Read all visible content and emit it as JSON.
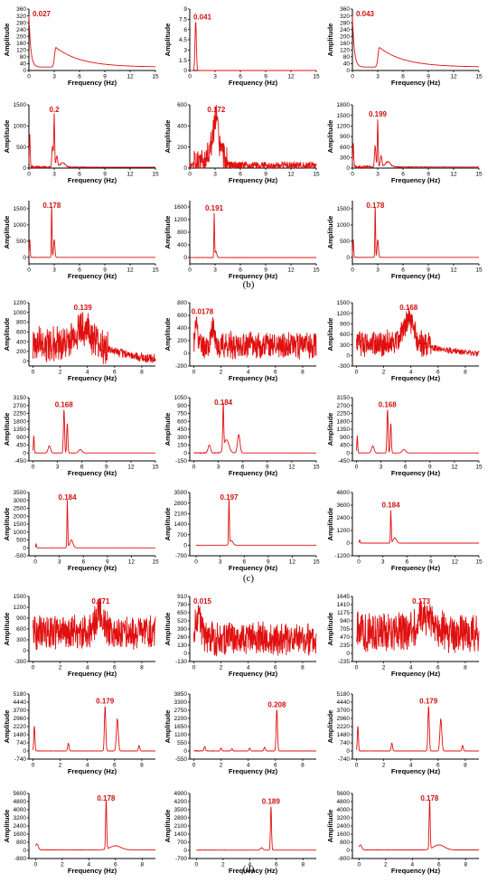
{
  "panel_labels": [
    "(b)",
    "(c)",
    "(d)"
  ],
  "chart_data": [
    {
      "type": "line",
      "xlabel": "Frequency (Hz)",
      "ylabel": "Amplitude",
      "xlim": [
        0,
        15
      ],
      "xticks": [
        0,
        3,
        6,
        9,
        12,
        15
      ],
      "yticks": [
        0,
        40,
        80,
        120,
        160,
        200,
        240,
        280,
        320,
        360
      ],
      "ylim": [
        0,
        360
      ],
      "annotation": "0.027",
      "peaks": [],
      "baseline": 0,
      "noise": 0,
      "decay": {
        "amp": 300,
        "rate": 4.5,
        "bump": [
          3.2,
          115,
          0.9
        ]
      },
      "seed": 1
    },
    {
      "type": "line",
      "xlabel": "Frequency (Hz)",
      "ylabel": "Amplitude",
      "xlim": [
        0,
        15
      ],
      "xticks": [
        0,
        3,
        6,
        9,
        12,
        15
      ],
      "yticks": [
        0,
        1.5,
        3,
        4.5,
        6,
        7.5,
        9
      ],
      "ylim": [
        0,
        9
      ],
      "annotation": "0.041",
      "peaks": [
        [
          0.7,
          7.2,
          0.08
        ]
      ],
      "baseline": 0,
      "noise": 0,
      "seed": 2
    },
    {
      "type": "line",
      "xlabel": "Frequency (Hz)",
      "ylabel": "Amplitude",
      "xlim": [
        0,
        15
      ],
      "xticks": [
        0,
        3,
        6,
        9,
        12,
        15
      ],
      "yticks": [
        0,
        40,
        80,
        120,
        160,
        200,
        240,
        280,
        320,
        360
      ],
      "ylim": [
        0,
        360
      ],
      "annotation": "0.043",
      "peaks": [],
      "baseline": 0,
      "noise": 0,
      "decay": {
        "amp": 300,
        "rate": 4.5,
        "bump": [
          3.2,
          115,
          0.9
        ]
      },
      "seed": 3
    },
    {
      "type": "line",
      "xlabel": "Frequency (Hz)",
      "ylabel": "Amplitude",
      "xlim": [
        0,
        15
      ],
      "xticks": [
        0,
        3,
        6,
        9,
        12,
        15
      ],
      "yticks": [
        0,
        500,
        1000,
        1500
      ],
      "ylim": [
        0,
        1500
      ],
      "annotation": "0.2",
      "peaks": [
        [
          0.1,
          800,
          0.05
        ],
        [
          2.8,
          500,
          0.08
        ],
        [
          3.0,
          1250,
          0.05
        ],
        [
          3.3,
          250,
          0.1
        ],
        [
          4.0,
          100,
          0.3
        ]
      ],
      "baseline": 20,
      "noise": 60,
      "seed": 4
    },
    {
      "type": "line",
      "xlabel": "Frequency (Hz)",
      "ylabel": "Amplitude",
      "xlim": [
        0,
        15
      ],
      "xticks": [
        0,
        3,
        6,
        9,
        12,
        15
      ],
      "yticks": [
        0,
        200,
        400,
        600
      ],
      "ylim": [
        0,
        600
      ],
      "annotation": "0.172",
      "peaks": [
        [
          3.0,
          250,
          0.6
        ],
        [
          3.1,
          200,
          0.2
        ]
      ],
      "baseline": 20,
      "noise": 140,
      "noiseRange": [
        0.5,
        4.5
      ],
      "seed": 5
    },
    {
      "type": "line",
      "xlabel": "Frequency (Hz)",
      "ylabel": "Amplitude",
      "xlim": [
        0,
        15
      ],
      "xticks": [
        0,
        3,
        6,
        9,
        12,
        15
      ],
      "yticks": [
        0,
        300,
        600,
        900,
        1200,
        1500,
        1800
      ],
      "ylim": [
        0,
        1800
      ],
      "annotation": "0.199",
      "peaks": [
        [
          0.1,
          700,
          0.05
        ],
        [
          2.7,
          600,
          0.08
        ],
        [
          3.0,
          1350,
          0.05
        ],
        [
          3.4,
          300,
          0.1
        ],
        [
          4.2,
          150,
          0.3
        ]
      ],
      "baseline": 30,
      "noise": 80,
      "seed": 6
    },
    {
      "type": "line",
      "xlabel": "Frequency (Hz)",
      "ylabel": "Amplitude",
      "xlim": [
        0,
        15
      ],
      "xticks": [
        0,
        3,
        6,
        9,
        12,
        15
      ],
      "yticks": [
        0,
        500,
        1000,
        1500
      ],
      "ylim": [
        -200,
        1750
      ],
      "annotation": "0.178",
      "peaks": [
        [
          0.1,
          550,
          0.05
        ],
        [
          2.7,
          1650,
          0.04
        ],
        [
          3.0,
          550,
          0.08
        ]
      ],
      "baseline": 0,
      "noise": 10,
      "seed": 7
    },
    {
      "type": "line",
      "xlabel": "Frequency (Hz)",
      "ylabel": "Amplitude",
      "xlim": [
        0,
        15
      ],
      "xticks": [
        0,
        3,
        6,
        9,
        12,
        15
      ],
      "yticks": [
        0,
        400,
        800,
        1200,
        1600
      ],
      "ylim": [
        -200,
        1800
      ],
      "annotation": "0.191",
      "peaks": [
        [
          2.9,
          1400,
          0.04
        ],
        [
          3.1,
          200,
          0.1
        ]
      ],
      "baseline": 0,
      "noise": 10,
      "seed": 8
    },
    {
      "type": "line",
      "xlabel": "Frequency (Hz)",
      "ylabel": "Amplitude",
      "xlim": [
        0,
        15
      ],
      "xticks": [
        0,
        3,
        6,
        9,
        12,
        15
      ],
      "yticks": [
        0,
        500,
        1000,
        1500
      ],
      "ylim": [
        -200,
        1750
      ],
      "annotation": "0.178",
      "peaks": [
        [
          0.1,
          550,
          0.05
        ],
        [
          2.7,
          1650,
          0.04
        ],
        [
          3.0,
          550,
          0.08
        ]
      ],
      "baseline": 0,
      "noise": 10,
      "seed": 9
    },
    {
      "type": "line",
      "xlabel": "Frequency (Hz)",
      "ylabel": "Amplitude",
      "xlim": [
        -0.3,
        9
      ],
      "xticks": [
        0,
        2,
        4,
        6,
        8
      ],
      "yticks": [
        0,
        200,
        400,
        600,
        800,
        1000,
        1200
      ],
      "ylim": [
        -100,
        1200
      ],
      "annotation": "0.139",
      "peaks": [
        [
          3.7,
          350,
          0.5
        ]
      ],
      "baseline": 300,
      "noise": 350,
      "noiseRange": [
        0,
        5.5
      ],
      "tailDecay": true,
      "seed": 10
    },
    {
      "type": "line",
      "xlabel": "Frequency (Hz)",
      "ylabel": "Amplitude",
      "xlim": [
        -0.3,
        9
      ],
      "xticks": [
        0,
        2,
        4,
        6,
        8
      ],
      "yticks": [
        -200,
        0,
        200,
        400,
        600,
        800
      ],
      "ylim": [
        -200,
        800
      ],
      "annotation": "0.0178",
      "peaks": [
        [
          0.2,
          350,
          0.1
        ],
        [
          1.4,
          300,
          0.1
        ]
      ],
      "baseline": 100,
      "noise": 200,
      "noiseRange": [
        0,
        9
      ],
      "seed": 11
    },
    {
      "type": "line",
      "xlabel": "Frequency (Hz)",
      "ylabel": "Amplitude",
      "xlim": [
        -0.3,
        9
      ],
      "xticks": [
        0,
        2,
        4,
        6,
        8
      ],
      "yticks": [
        -300,
        0,
        300,
        600,
        900,
        1200,
        1500
      ],
      "ylim": [
        -300,
        1500
      ],
      "annotation": "0.168",
      "peaks": [
        [
          3.8,
          650,
          0.4
        ]
      ],
      "baseline": 300,
      "noise": 350,
      "noiseRange": [
        0,
        5.5
      ],
      "tailDecay": true,
      "seed": 12
    },
    {
      "type": "line",
      "xlabel": "Frequency (Hz)",
      "ylabel": "Amplitude",
      "xlim": [
        -0.5,
        15
      ],
      "xticks": [
        0,
        3,
        6,
        9,
        12,
        15
      ],
      "yticks": [
        -450,
        0,
        450,
        900,
        1350,
        1800,
        2250,
        2700,
        3150
      ],
      "ylim": [
        -450,
        3150
      ],
      "annotation": "0.168",
      "peaks": [
        [
          0.1,
          1000,
          0.05
        ],
        [
          2.0,
          400,
          0.15
        ],
        [
          3.8,
          2500,
          0.07
        ],
        [
          4.2,
          1700,
          0.07
        ],
        [
          5.8,
          200,
          0.2
        ]
      ],
      "baseline": 0,
      "noise": 20,
      "seed": 13
    },
    {
      "type": "line",
      "xlabel": "Frequency (Hz)",
      "ylabel": "Amplitude",
      "xlim": [
        -0.5,
        15
      ],
      "xticks": [
        0,
        3,
        6,
        9,
        12,
        15
      ],
      "yticks": [
        -150,
        0,
        150,
        300,
        450,
        600,
        750,
        900,
        1050
      ],
      "ylim": [
        -150,
        1050
      ],
      "annotation": "0.184",
      "peaks": [
        [
          1.9,
          150,
          0.15
        ],
        [
          3.6,
          850,
          0.06
        ],
        [
          4.0,
          250,
          0.3
        ],
        [
          5.5,
          350,
          0.15
        ]
      ],
      "baseline": 0,
      "noise": 15,
      "seed": 14
    },
    {
      "type": "line",
      "xlabel": "Frequency (Hz)",
      "ylabel": "Amplitude",
      "xlim": [
        -0.5,
        15
      ],
      "xticks": [
        0,
        3,
        6,
        9,
        12,
        15
      ],
      "yticks": [
        -450,
        0,
        450,
        900,
        1350,
        1800,
        2250,
        2700,
        3150
      ],
      "ylim": [
        -450,
        3150
      ],
      "annotation": "0.168",
      "peaks": [
        [
          0.1,
          1000,
          0.05
        ],
        [
          2.0,
          400,
          0.15
        ],
        [
          3.8,
          2500,
          0.07
        ],
        [
          4.2,
          1700,
          0.07
        ],
        [
          5.8,
          200,
          0.2
        ]
      ],
      "baseline": 0,
      "noise": 20,
      "seed": 15
    },
    {
      "type": "line",
      "xlabel": "Frequency (Hz)",
      "ylabel": "Amplitude",
      "xlim": [
        -0.8,
        15
      ],
      "xticks": [
        0,
        3,
        6,
        9,
        12,
        15
      ],
      "yticks": [
        -500,
        0,
        500,
        1000,
        1500,
        2000,
        2500,
        3000,
        3500
      ],
      "ylim": [
        -500,
        3500
      ],
      "annotation": "0.184",
      "peaks": [
        [
          0.1,
          250,
          0.05
        ],
        [
          4.0,
          3000,
          0.05
        ],
        [
          4.5,
          500,
          0.2
        ]
      ],
      "baseline": 0,
      "noise": 10,
      "seed": 16
    },
    {
      "type": "line",
      "xlabel": "Frequency (Hz)",
      "ylabel": "Amplitude",
      "xlim": [
        -0.8,
        15
      ],
      "xticks": [
        0,
        3,
        6,
        9,
        12,
        15
      ],
      "yticks": [
        -700,
        0,
        700,
        1400,
        2100,
        2800,
        3500
      ],
      "ylim": [
        -700,
        3500
      ],
      "annotation": "0.197",
      "peaks": [
        [
          4.1,
          3000,
          0.05
        ],
        [
          4.4,
          300,
          0.2
        ]
      ],
      "baseline": 0,
      "noise": 10,
      "seed": 17
    },
    {
      "type": "line",
      "xlabel": "Frequency (Hz)",
      "ylabel": "Amplitude",
      "xlim": [
        -0.8,
        15
      ],
      "xticks": [
        0,
        3,
        6,
        9,
        12,
        15
      ],
      "yticks": [
        -1200,
        0,
        1200,
        2400,
        3600,
        4800
      ],
      "ylim": [
        -1200,
        4800
      ],
      "annotation": "0.184",
      "peaks": [
        [
          0.1,
          300,
          0.05
        ],
        [
          4.0,
          3100,
          0.05
        ],
        [
          4.5,
          500,
          0.2
        ]
      ],
      "baseline": 0,
      "noise": 10,
      "seed": 18
    },
    {
      "type": "line",
      "xlabel": "Frequency (Hz)",
      "ylabel": "Amplitude",
      "xlim": [
        -0.3,
        9
      ],
      "xticks": [
        0,
        2,
        4,
        6,
        8
      ],
      "yticks": [
        -300,
        0,
        300,
        600,
        900,
        1200,
        1500
      ],
      "ylim": [
        -300,
        1500
      ],
      "annotation": "0.171",
      "peaks": [
        [
          4.9,
          500,
          0.3
        ]
      ],
      "baseline": 450,
      "noise": 450,
      "noiseRange": [
        0,
        9
      ],
      "seed": 19
    },
    {
      "type": "line",
      "xlabel": "Frequency (Hz)",
      "ylabel": "Amplitude",
      "xlim": [
        -0.3,
        9
      ],
      "xticks": [
        0,
        2,
        4,
        6,
        8
      ],
      "yticks": [
        -130,
        0,
        130,
        260,
        390,
        520,
        650,
        780,
        910
      ],
      "ylim": [
        -130,
        910
      ],
      "annotation": "0.015",
      "peaks": [
        [
          0.3,
          400,
          0.2
        ]
      ],
      "baseline": 200,
      "noise": 250,
      "noiseRange": [
        0,
        9
      ],
      "seed": 20
    },
    {
      "type": "line",
      "xlabel": "Frequency (Hz)",
      "ylabel": "Amplitude",
      "xlim": [
        -0.3,
        9
      ],
      "xticks": [
        0,
        2,
        4,
        6,
        8
      ],
      "yticks": [
        -235,
        0,
        235,
        470,
        705,
        940,
        1175,
        1410,
        1645
      ],
      "ylim": [
        -235,
        1645
      ],
      "annotation": "0.173",
      "peaks": [
        [
          5.0,
          500,
          0.4
        ]
      ],
      "baseline": 550,
      "noise": 550,
      "noiseRange": [
        0,
        9
      ],
      "seed": 21
    },
    {
      "type": "line",
      "xlabel": "Frequency (Hz)",
      "ylabel": "Amplitude",
      "xlim": [
        -0.3,
        9
      ],
      "xticks": [
        0,
        2,
        4,
        6,
        8
      ],
      "yticks": [
        -740,
        0,
        740,
        1480,
        2220,
        2960,
        3700,
        4440,
        5180
      ],
      "ylim": [
        -740,
        5180
      ],
      "annotation": "0.179",
      "peaks": [
        [
          0.1,
          2300,
          0.04
        ],
        [
          2.6,
          700,
          0.05
        ],
        [
          5.3,
          4100,
          0.05
        ],
        [
          6.2,
          2900,
          0.07
        ],
        [
          7.8,
          500,
          0.05
        ]
      ],
      "baseline": 0,
      "noise": 30,
      "seed": 22
    },
    {
      "type": "line",
      "xlabel": "Frequency (Hz)",
      "ylabel": "Amplitude",
      "xlim": [
        -0.3,
        9
      ],
      "xticks": [
        0,
        2,
        4,
        6,
        8
      ],
      "yticks": [
        -550,
        0,
        550,
        1100,
        1650,
        2200,
        2750,
        3300,
        3850
      ],
      "ylim": [
        -550,
        3850
      ],
      "annotation": "0.208",
      "peaks": [
        [
          0.8,
          300,
          0.05
        ],
        [
          2.0,
          200,
          0.05
        ],
        [
          2.8,
          150,
          0.05
        ],
        [
          4.1,
          200,
          0.05
        ],
        [
          5.2,
          250,
          0.05
        ],
        [
          6.1,
          2800,
          0.05
        ]
      ],
      "baseline": 0,
      "noise": 40,
      "seed": 23
    },
    {
      "type": "line",
      "xlabel": "Frequency (Hz)",
      "ylabel": "Amplitude",
      "xlim": [
        -0.3,
        9
      ],
      "xticks": [
        0,
        2,
        4,
        6,
        8
      ],
      "yticks": [
        -740,
        0,
        740,
        1480,
        2220,
        2960,
        3700,
        4440,
        5180
      ],
      "ylim": [
        -740,
        5180
      ],
      "annotation": "0.179",
      "peaks": [
        [
          0.1,
          2300,
          0.04
        ],
        [
          2.6,
          700,
          0.05
        ],
        [
          5.3,
          4100,
          0.05
        ],
        [
          6.2,
          2900,
          0.07
        ],
        [
          7.8,
          500,
          0.05
        ]
      ],
      "baseline": 0,
      "noise": 30,
      "seed": 24
    },
    {
      "type": "line",
      "xlabel": "Frequency (Hz)",
      "ylabel": "Amplitude",
      "xlim": [
        -0.5,
        9
      ],
      "xticks": [
        0,
        2,
        4,
        6,
        8
      ],
      "yticks": [
        -800,
        0,
        800,
        1600,
        2400,
        3200,
        4000,
        4800,
        5600
      ],
      "ylim": [
        -800,
        5600
      ],
      "annotation": "0.178",
      "peaks": [
        [
          0.1,
          600,
          0.1
        ],
        [
          5.3,
          4900,
          0.04
        ],
        [
          6.0,
          400,
          0.4
        ]
      ],
      "baseline": 50,
      "noise": 40,
      "seed": 25
    },
    {
      "type": "line",
      "xlabel": "Frequency (Hz)",
      "ylabel": "Amplitude",
      "xlim": [
        -0.5,
        9
      ],
      "xticks": [
        0,
        2,
        4,
        6,
        8
      ],
      "yticks": [
        -700,
        0,
        700,
        1400,
        2100,
        2800,
        3500,
        4200,
        4900
      ],
      "ylim": [
        -700,
        4900
      ],
      "annotation": "0.189",
      "peaks": [
        [
          4.9,
          200,
          0.1
        ],
        [
          5.6,
          3800,
          0.04
        ]
      ],
      "baseline": 20,
      "noise": 30,
      "seed": 26
    },
    {
      "type": "line",
      "xlabel": "Frequency (Hz)",
      "ylabel": "Amplitude",
      "xlim": [
        -0.5,
        9
      ],
      "xticks": [
        0,
        2,
        4,
        6,
        8
      ],
      "yticks": [
        -800,
        0,
        800,
        1600,
        2400,
        3200,
        4000,
        4800,
        5600
      ],
      "ylim": [
        -800,
        5600
      ],
      "annotation": "0.178",
      "peaks": [
        [
          0.1,
          500,
          0.1
        ],
        [
          5.3,
          4900,
          0.04
        ],
        [
          6.0,
          500,
          0.4
        ]
      ],
      "baseline": 40,
      "noise": 40,
      "seed": 27
    }
  ]
}
